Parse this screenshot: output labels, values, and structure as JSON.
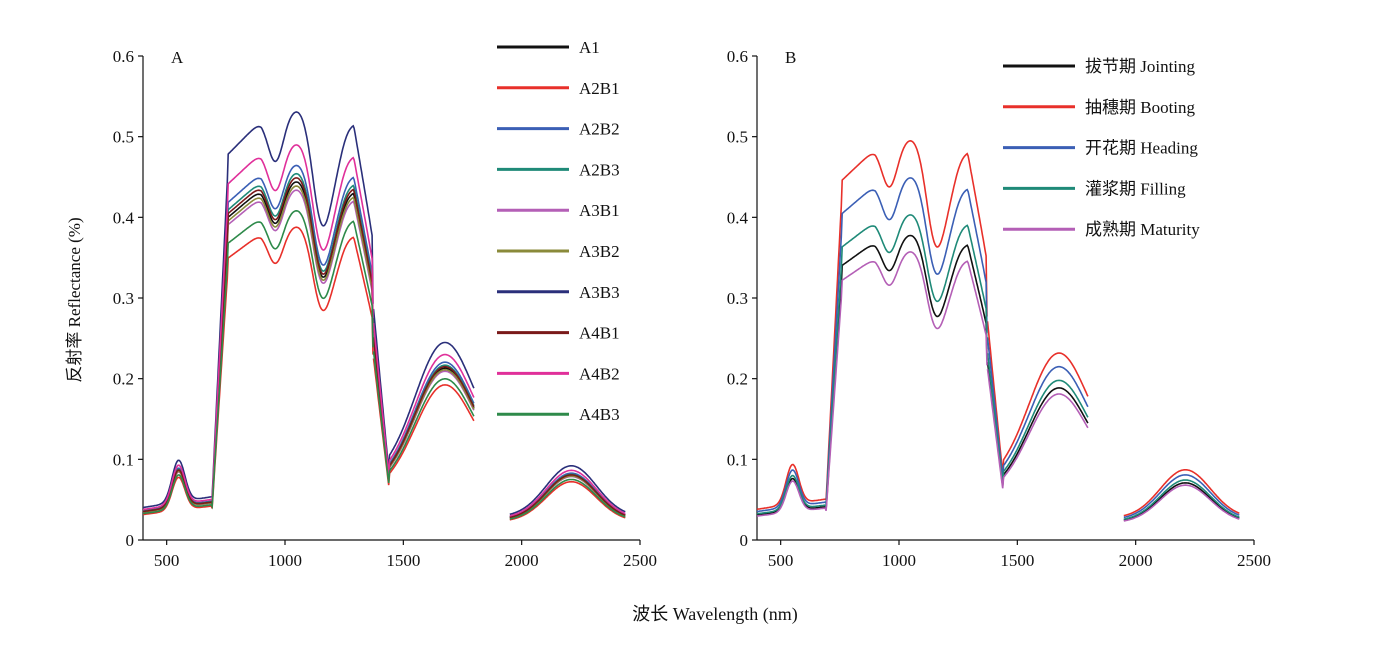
{
  "figure": {
    "ylabel": "反射率 Reflectance (%)",
    "xlabel": "波长 Wavelength (nm)"
  },
  "chart_data": [
    {
      "type": "line",
      "panel_label": "A",
      "xlim": [
        400,
        2500
      ],
      "ylim": [
        0,
        0.6
      ],
      "xticks": [
        "500",
        "1000",
        "1500",
        "2000",
        "2500"
      ],
      "yticks": [
        "0",
        "0.1",
        "0.2",
        "0.3",
        "0.4",
        "0.5",
        "0.6"
      ],
      "legend_position": "top-right",
      "grid": false,
      "series": [
        {
          "name": "A1",
          "color": "#111111",
          "base": 0.435
        },
        {
          "name": "A2B1",
          "color": "#e8302a",
          "base": 0.38
        },
        {
          "name": "A2B2",
          "color": "#3b5fb5",
          "base": 0.455
        },
        {
          "name": "A2B3",
          "color": "#1f8a78",
          "base": 0.445
        },
        {
          "name": "A3B1",
          "color": "#b45fb6",
          "base": 0.425
        },
        {
          "name": "A3B2",
          "color": "#8a8a3a",
          "base": 0.43
        },
        {
          "name": "A3B3",
          "color": "#2a2f7a",
          "base": 0.52
        },
        {
          "name": "A4B1",
          "color": "#7a1a1a",
          "base": 0.44
        },
        {
          "name": "A4B2",
          "color": "#e0309a",
          "base": 0.48
        },
        {
          "name": "A4B3",
          "color": "#2e8a4a",
          "base": 0.4
        }
      ]
    },
    {
      "type": "line",
      "panel_label": "B",
      "xlim": [
        400,
        2500
      ],
      "ylim": [
        0,
        0.6
      ],
      "xticks": [
        "500",
        "1000",
        "1500",
        "2000",
        "2500"
      ],
      "yticks": [
        "0",
        "0.1",
        "0.2",
        "0.3",
        "0.4",
        "0.5",
        "0.6"
      ],
      "legend_position": "top-right",
      "grid": false,
      "series": [
        {
          "name": "拔节期 Jointing",
          "color": "#111111",
          "base": 0.37
        },
        {
          "name": "抽穗期 Booting",
          "color": "#e8302a",
          "base": 0.485
        },
        {
          "name": "开花期 Heading",
          "color": "#3b5fb5",
          "base": 0.44
        },
        {
          "name": "灌浆期 Filling",
          "color": "#1f8a78",
          "base": 0.395
        },
        {
          "name": "成熟期 Maturity",
          "color": "#b45fb6",
          "base": 0.35
        }
      ]
    }
  ]
}
